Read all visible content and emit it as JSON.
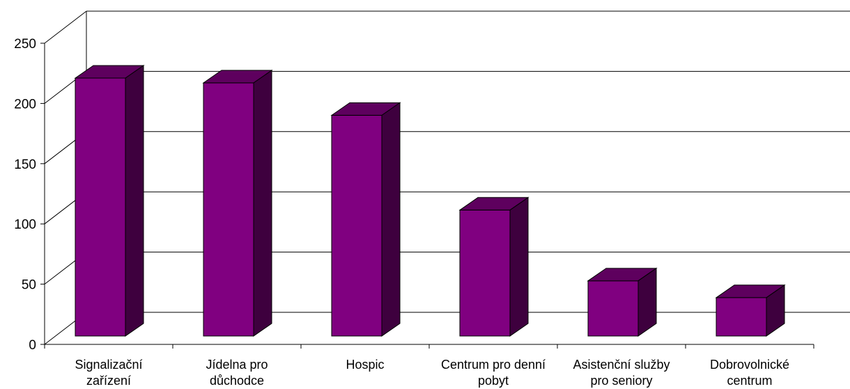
{
  "chart_data": {
    "type": "bar",
    "style": "3d-column",
    "categories": [
      [
        "Signalizační",
        "zařízení"
      ],
      [
        "Jídelna pro",
        "důchodce"
      ],
      [
        "Hospic"
      ],
      [
        "Centrum pro denní",
        "pobyt"
      ],
      [
        "Asistenční služby",
        "pro seniory"
      ],
      [
        "Dobrovolnické",
        "centrum"
      ]
    ],
    "values": [
      215,
      211,
      184,
      105,
      46,
      32
    ],
    "ylim": [
      0,
      250
    ],
    "yticks": [
      0,
      50,
      100,
      150,
      200,
      250
    ],
    "grid": true,
    "legend": "none",
    "title": "",
    "xlabel": "",
    "ylabel": "",
    "colors": {
      "bar_front": "#800080",
      "bar_top": "#5e005e",
      "bar_side": "#3e003e",
      "grid": "#000000"
    }
  }
}
